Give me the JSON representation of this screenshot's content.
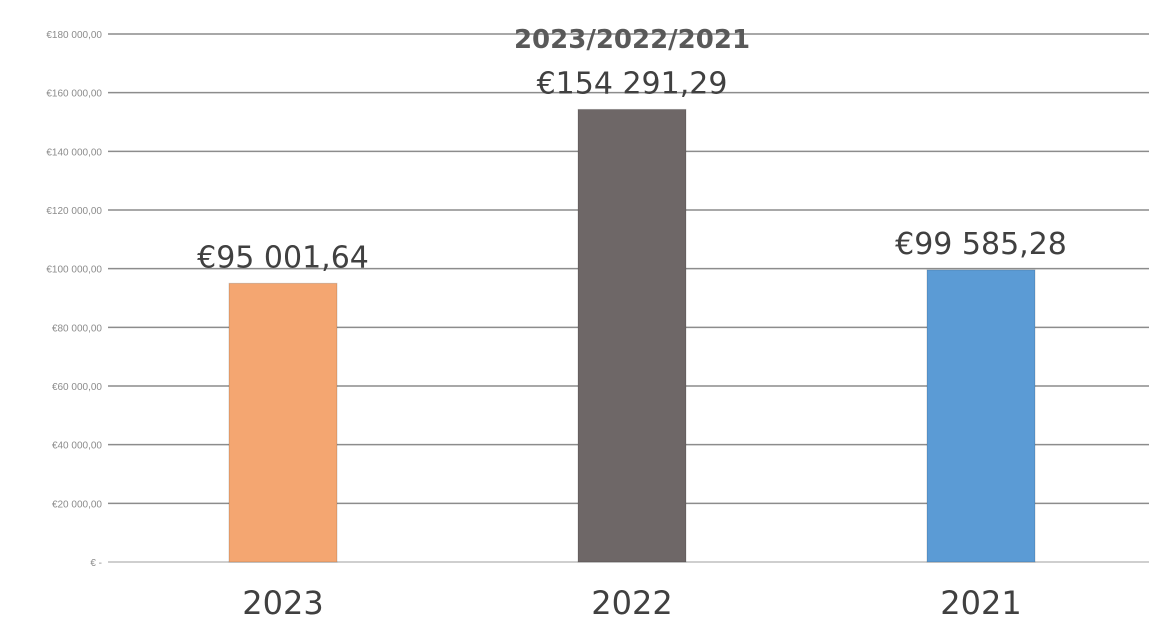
{
  "chart_data": {
    "type": "bar",
    "title": "2023/2022/2021",
    "title_partial": "",
    "xlabel": "",
    "ylabel": "",
    "categories": [
      "2023",
      "2022",
      "2021"
    ],
    "values": [
      95001.64,
      154291.29,
      99585.28
    ],
    "data_labels": [
      "€95 001,64",
      "€154 291,29",
      "€99 585,28"
    ],
    "bar_colors": [
      "#F4A671",
      "#6E6767",
      "#5B9BD5"
    ],
    "ylim": [
      0,
      180000
    ],
    "y_ticks": [
      0,
      20000,
      40000,
      60000,
      80000,
      100000,
      120000,
      140000,
      160000,
      180000
    ],
    "y_tick_labels": [
      "€ -",
      "€20 000,00",
      "€40 000,00",
      "€60 000,00",
      "€80 000,00",
      "€100 000,00",
      "€120 000,00",
      "€140 000,00",
      "€160 000,00",
      "€180 000,00"
    ],
    "grid": true,
    "legend": "none"
  }
}
